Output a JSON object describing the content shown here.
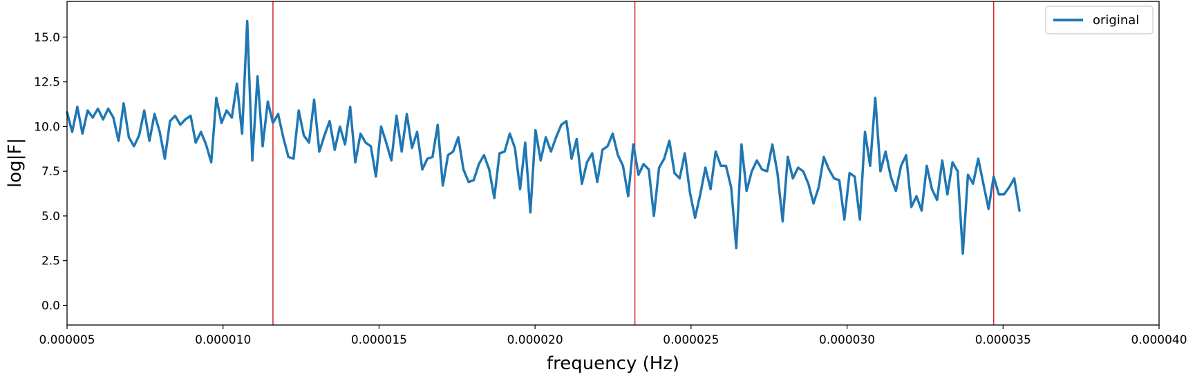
{
  "chart_data": {
    "type": "line",
    "title": "",
    "xlabel": "frequency (Hz)",
    "ylabel": "log|F|",
    "xlim": [
      5e-06,
      4e-05
    ],
    "ylim": [
      -1.1,
      17.0
    ],
    "xticks": [
      5e-06,
      1e-05,
      1.5e-05,
      2e-05,
      2.5e-05,
      3e-05,
      3.5e-05,
      4e-05
    ],
    "xtick_labels": [
      "0.000005",
      "0.000010",
      "0.000015",
      "0.000020",
      "0.000025",
      "0.000030",
      "0.000035",
      "0.000040"
    ],
    "yticks": [
      0.0,
      2.5,
      5.0,
      7.5,
      10.0,
      12.5,
      15.0
    ],
    "ytick_labels": [
      "0.0",
      "2.5",
      "5.0",
      "7.5",
      "10.0",
      "12.5",
      "15.0"
    ],
    "grid": false,
    "legend_position": "top-right",
    "vlines": {
      "x": [
        1.16e-05,
        2.32e-05,
        3.47e-05
      ],
      "color": "#d62728"
    },
    "series": [
      {
        "name": "original",
        "color": "#1f77b4",
        "x_start": 5e-06,
        "x_step": 1.65e-07,
        "values": [
          10.8,
          9.7,
          11.1,
          9.6,
          10.9,
          10.5,
          11.0,
          10.4,
          11.0,
          10.5,
          9.2,
          11.3,
          9.4,
          8.9,
          9.5,
          10.9,
          9.2,
          10.7,
          9.7,
          8.2,
          10.3,
          10.6,
          10.1,
          10.4,
          10.6,
          9.1,
          9.7,
          9.0,
          8.0,
          11.6,
          10.2,
          10.9,
          10.5,
          12.4,
          9.6,
          15.9,
          8.1,
          12.8,
          8.9,
          11.4,
          10.2,
          10.7,
          9.4,
          8.3,
          8.2,
          10.9,
          9.5,
          9.1,
          11.5,
          8.6,
          9.5,
          10.3,
          8.7,
          10.0,
          9.0,
          11.1,
          8.0,
          9.6,
          9.1,
          8.9,
          7.2,
          10.0,
          9.1,
          8.1,
          10.6,
          8.6,
          10.7,
          8.8,
          9.7,
          7.6,
          8.2,
          8.3,
          10.1,
          6.7,
          8.4,
          8.6,
          9.4,
          7.6,
          6.9,
          7.0,
          7.9,
          8.4,
          7.6,
          6.0,
          8.5,
          8.6,
          9.6,
          8.8,
          6.5,
          9.1,
          5.2,
          9.8,
          8.1,
          9.4,
          8.6,
          9.4,
          10.1,
          10.3,
          8.2,
          9.3,
          6.8,
          8.0,
          8.5,
          6.9,
          8.7,
          8.9,
          9.6,
          8.4,
          7.8,
          6.1,
          9.0,
          7.3,
          7.9,
          7.6,
          5.0,
          7.7,
          8.2,
          9.2,
          7.4,
          7.1,
          8.5,
          6.3,
          4.9,
          6.2,
          7.7,
          6.5,
          8.6,
          7.8,
          7.8,
          6.6,
          3.2,
          9.0,
          6.4,
          7.5,
          8.1,
          7.6,
          7.5,
          9.0,
          7.4,
          4.7,
          8.3,
          7.1,
          7.7,
          7.5,
          6.8,
          5.7,
          6.6,
          8.3,
          7.6,
          7.1,
          7.0,
          4.8,
          7.4,
          7.2,
          4.8,
          9.7,
          7.8,
          11.6,
          7.5,
          8.6,
          7.2,
          6.4,
          7.8,
          8.4,
          5.5,
          6.1,
          5.3,
          7.8,
          6.5,
          5.9,
          8.1,
          6.2,
          8.0,
          7.5,
          2.9,
          7.3,
          6.8,
          8.2,
          6.8,
          5.4,
          7.2,
          6.2,
          6.2,
          6.6,
          7.1,
          5.3
        ]
      }
    ]
  }
}
